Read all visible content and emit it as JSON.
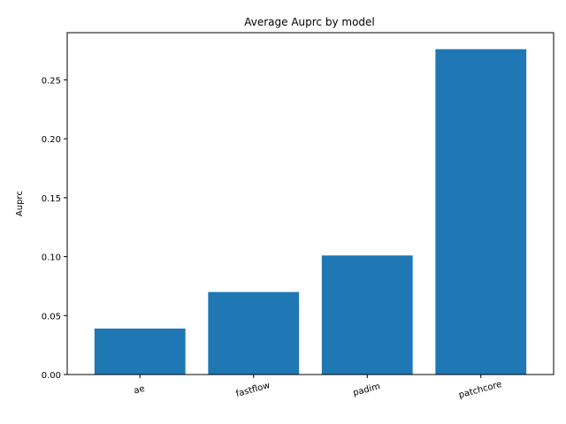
{
  "chart_data": {
    "type": "bar",
    "title": "Average Auprc by model",
    "xlabel": "",
    "ylabel": "Auprc",
    "categories": [
      "ae",
      "fastflow",
      "padim",
      "patchcore"
    ],
    "values": [
      0.039,
      0.07,
      0.101,
      0.276
    ],
    "ylim": [
      0,
      0.29
    ],
    "yticks": [
      0.0,
      0.05,
      0.1,
      0.15,
      0.2,
      0.25
    ],
    "ytick_labels": [
      "0.00",
      "0.05",
      "0.10",
      "0.15",
      "0.20",
      "0.25"
    ],
    "bar_color": "#1f77b4",
    "grid": false,
    "legend": "none"
  }
}
